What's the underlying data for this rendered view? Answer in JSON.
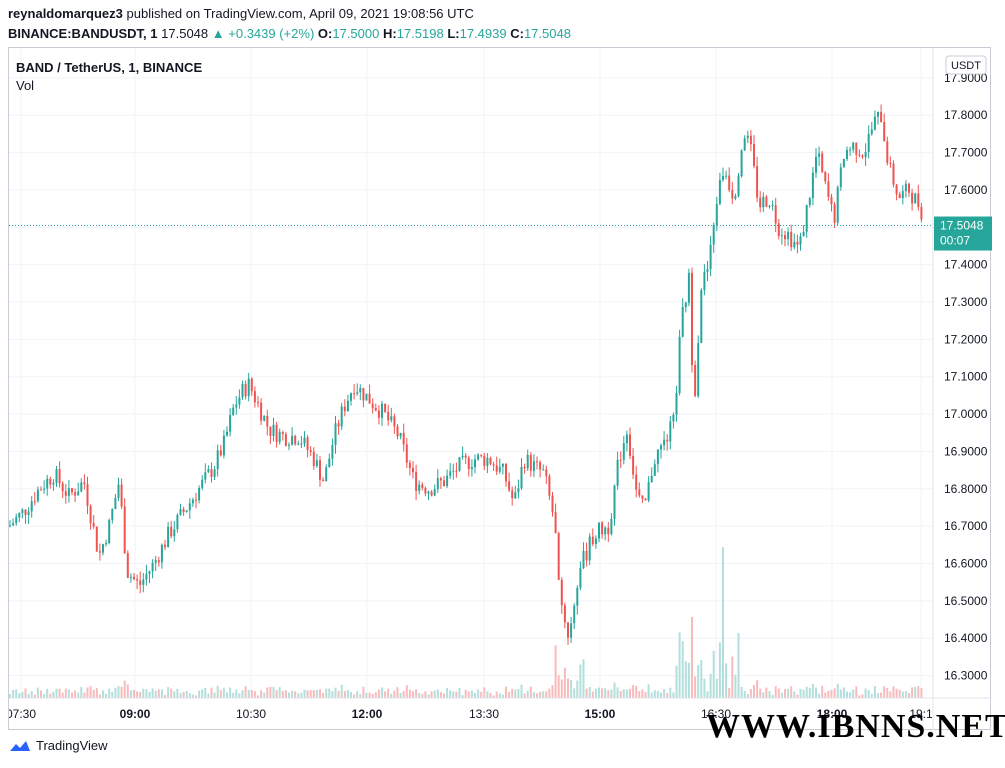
{
  "header": {
    "author": "reynaldomarquez3",
    "published": "published on TradingView.com, April 09, 2021 19:08:56 UTC",
    "symbol": "BINANCE:BANDUSDT, 1",
    "last": "17.5048",
    "change": "+0.3439 (+2%)",
    "o_label": "O:",
    "o_value": "17.5000",
    "h_label": "H:",
    "h_value": "17.5198",
    "l_label": "L:",
    "l_value": "17.4939",
    "c_label": "C:",
    "c_value": "17.5048"
  },
  "legend": {
    "title": "BAND / TetherUS, 1, BINANCE",
    "vol": "Vol"
  },
  "currency_button": "USDT",
  "price_badge": {
    "price": "17.5048",
    "countdown": "00:07"
  },
  "footer": {
    "brand": "TradingView"
  },
  "watermark": "WWW.IBNNS.NET",
  "colors": {
    "up": "#26a69a",
    "down": "#ef5350",
    "up_vol": "#b2dfdb",
    "down_vol": "#f8bbbb",
    "grid": "#f0f3fa"
  },
  "chart_data": {
    "type": "candlestick",
    "title": "BAND / TetherUS, 1, BINANCE",
    "x_ticks": [
      "07:30",
      "09:00",
      "10:30",
      "12:00",
      "13:30",
      "15:00",
      "16:30",
      "18:00",
      "19:1"
    ],
    "y_ticks": [
      "16.3000",
      "16.4000",
      "16.5000",
      "16.6000",
      "16.7000",
      "16.8000",
      "16.9000",
      "17.0000",
      "17.1000",
      "17.2000",
      "17.3000",
      "17.4000",
      "17.5000",
      "17.6000",
      "17.7000",
      "17.8000",
      "17.9000"
    ],
    "ylim": [
      16.24,
      17.98
    ],
    "last_price": 17.5048,
    "price_path": [
      [
        0,
        16.7
      ],
      [
        15,
        16.74
      ],
      [
        30,
        16.8
      ],
      [
        45,
        16.84
      ],
      [
        60,
        16.78
      ],
      [
        75,
        16.82
      ],
      [
        90,
        16.62
      ],
      [
        100,
        16.7
      ],
      [
        110,
        16.82
      ],
      [
        118,
        16.58
      ],
      [
        130,
        16.54
      ],
      [
        145,
        16.6
      ],
      [
        160,
        16.68
      ],
      [
        175,
        16.74
      ],
      [
        190,
        16.8
      ],
      [
        205,
        16.86
      ],
      [
        215,
        16.92
      ],
      [
        225,
        17.02
      ],
      [
        233,
        17.06
      ],
      [
        240,
        17.08
      ],
      [
        250,
        17.02
      ],
      [
        260,
        16.96
      ],
      [
        275,
        16.94
      ],
      [
        290,
        16.94
      ],
      [
        305,
        16.88
      ],
      [
        315,
        16.82
      ],
      [
        325,
        16.94
      ],
      [
        335,
        17.02
      ],
      [
        345,
        17.08
      ],
      [
        360,
        17.04
      ],
      [
        375,
        17.0
      ],
      [
        390,
        16.94
      ],
      [
        405,
        16.82
      ],
      [
        420,
        16.8
      ],
      [
        435,
        16.82
      ],
      [
        450,
        16.86
      ],
      [
        465,
        16.88
      ],
      [
        480,
        16.88
      ],
      [
        495,
        16.84
      ],
      [
        505,
        16.76
      ],
      [
        515,
        16.88
      ],
      [
        525,
        16.86
      ],
      [
        535,
        16.84
      ],
      [
        545,
        16.72
      ],
      [
        552,
        16.5
      ],
      [
        560,
        16.4
      ],
      [
        570,
        16.58
      ],
      [
        585,
        16.68
      ],
      [
        600,
        16.7
      ],
      [
        610,
        16.88
      ],
      [
        618,
        16.96
      ],
      [
        628,
        16.78
      ],
      [
        635,
        16.74
      ],
      [
        645,
        16.88
      ],
      [
        655,
        16.92
      ],
      [
        665,
        16.98
      ],
      [
        672,
        17.24
      ],
      [
        680,
        17.36
      ],
      [
        685,
        17.02
      ],
      [
        692,
        17.34
      ],
      [
        700,
        17.4
      ],
      [
        708,
        17.58
      ],
      [
        715,
        17.66
      ],
      [
        725,
        17.58
      ],
      [
        735,
        17.76
      ],
      [
        742,
        17.7
      ],
      [
        750,
        17.56
      ],
      [
        760,
        17.58
      ],
      [
        770,
        17.5
      ],
      [
        780,
        17.48
      ],
      [
        790,
        17.44
      ],
      [
        800,
        17.58
      ],
      [
        808,
        17.7
      ],
      [
        815,
        17.62
      ],
      [
        825,
        17.52
      ],
      [
        835,
        17.7
      ],
      [
        845,
        17.72
      ],
      [
        855,
        17.7
      ],
      [
        865,
        17.78
      ],
      [
        872,
        17.8
      ],
      [
        880,
        17.66
      ],
      [
        890,
        17.58
      ],
      [
        900,
        17.6
      ],
      [
        910,
        17.56
      ],
      [
        920,
        17.5
      ]
    ]
  }
}
